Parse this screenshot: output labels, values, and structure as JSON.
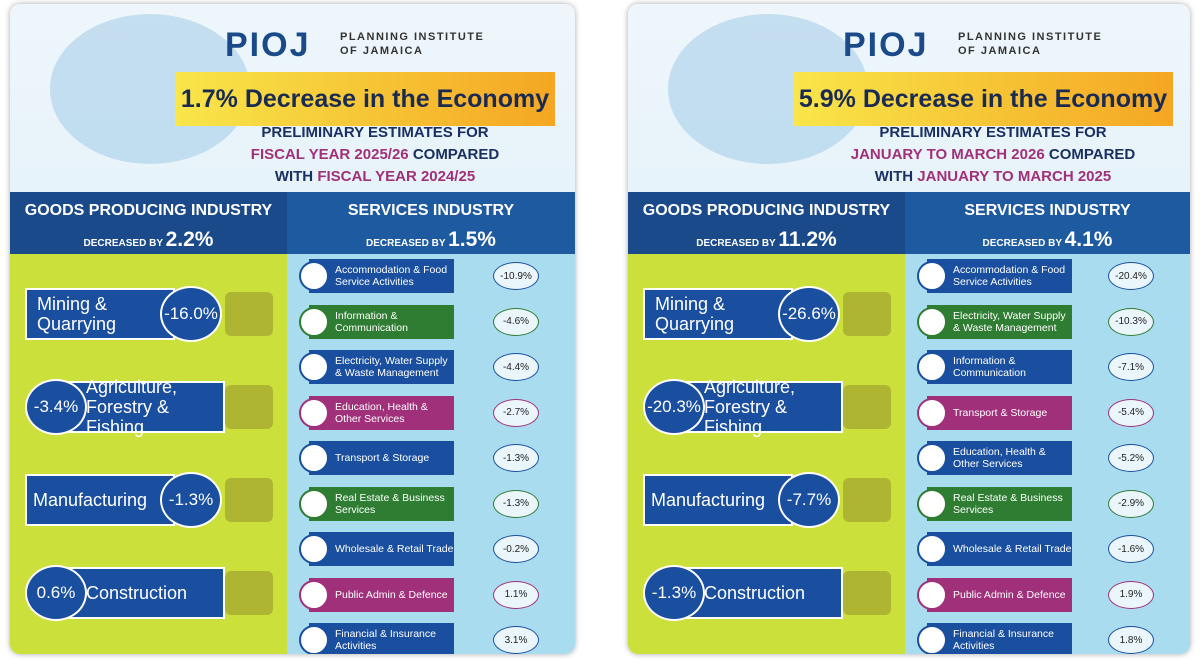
{
  "cards": [
    {
      "logo": "PIOJ",
      "org_line1": "PLANNING INSTITUTE",
      "org_line2": "OF JAMAICA",
      "title": "1.7% Decrease in the Economy",
      "subtitle_intro": "PRELIMINARY ESTIMATES FOR",
      "period_current": "FISCAL YEAR 2025/26",
      "compared": "COMPARED",
      "with": "WITH",
      "period_previous": "FISCAL YEAR 2024/25",
      "goods": {
        "heading": "GOODS PRODUCING INDUSTRY",
        "change_text": "DECREASED BY",
        "change": "2.2%",
        "items": [
          {
            "label": "Mining & Quarrying",
            "value": "-16.0%"
          },
          {
            "label": "Agriculture, Forestry & Fishing",
            "value": "-3.4%"
          },
          {
            "label": "Manufacturing",
            "value": "-1.3%"
          },
          {
            "label": "Construction",
            "value": "0.6%"
          }
        ]
      },
      "services": {
        "heading": "SERVICES INDUSTRY",
        "change_text": "DECREASED BY",
        "change": "1.5%",
        "items": [
          {
            "label": "Accommodation & Food Service Activities",
            "value": "-10.9%",
            "color": "#1a4fa0"
          },
          {
            "label": "Information & Communication",
            "value": "-4.6%",
            "color": "#2e7d32"
          },
          {
            "label": "Electricity, Water Supply & Waste Management",
            "value": "-4.4%",
            "color": "#1a4fa0"
          },
          {
            "label": "Education, Health & Other Services",
            "value": "-2.7%",
            "color": "#a0307a"
          },
          {
            "label": "Transport & Storage",
            "value": "-1.3%",
            "color": "#1a4fa0"
          },
          {
            "label": "Real Estate & Business Services",
            "value": "-1.3%",
            "color": "#2e7d32"
          },
          {
            "label": "Wholesale & Retail Trade",
            "value": "-0.2%",
            "color": "#1a4fa0"
          },
          {
            "label": "Public Admin & Defence",
            "value": "1.1%",
            "color": "#a0307a"
          },
          {
            "label": "Financial & Insurance Activities",
            "value": "3.1%",
            "color": "#1a4fa0"
          }
        ]
      }
    },
    {
      "logo": "PIOJ",
      "org_line1": "PLANNING INSTITUTE",
      "org_line2": "OF JAMAICA",
      "title": "5.9% Decrease in the Economy",
      "subtitle_intro": "PRELIMINARY ESTIMATES FOR",
      "period_current": "JANUARY TO MARCH 2026",
      "compared": "COMPARED",
      "with": "WITH",
      "period_previous": "JANUARY TO MARCH 2025",
      "goods": {
        "heading": "GOODS PRODUCING INDUSTRY",
        "change_text": "DECREASED BY",
        "change": "11.2%",
        "items": [
          {
            "label": "Mining & Quarrying",
            "value": "-26.6%"
          },
          {
            "label": "Agriculture, Forestry & Fishing",
            "value": "-20.3%"
          },
          {
            "label": "Manufacturing",
            "value": "-7.7%"
          },
          {
            "label": "Construction",
            "value": "-1.3%"
          }
        ]
      },
      "services": {
        "heading": "SERVICES INDUSTRY",
        "change_text": "DECREASED BY",
        "change": "4.1%",
        "items": [
          {
            "label": "Accommodation & Food Service Activities",
            "value": "-20.4%",
            "color": "#1a4fa0"
          },
          {
            "label": "Electricity, Water Supply & Waste Management",
            "value": "-10.3%",
            "color": "#2e7d32"
          },
          {
            "label": "Information & Communication",
            "value": "-7.1%",
            "color": "#1a4fa0"
          },
          {
            "label": "Transport & Storage",
            "value": "-5.4%",
            "color": "#a0307a"
          },
          {
            "label": "Education, Health & Other Services",
            "value": "-5.2%",
            "color": "#1a4fa0"
          },
          {
            "label": "Real Estate & Business Services",
            "value": "-2.9%",
            "color": "#2e7d32"
          },
          {
            "label": "Wholesale & Retail Trade",
            "value": "-1.6%",
            "color": "#1a4fa0"
          },
          {
            "label": "Public Admin & Defence",
            "value": "1.9%",
            "color": "#a0307a"
          },
          {
            "label": "Financial & Insurance Activities",
            "value": "1.8%",
            "color": "#1a4fa0"
          }
        ]
      }
    }
  ]
}
